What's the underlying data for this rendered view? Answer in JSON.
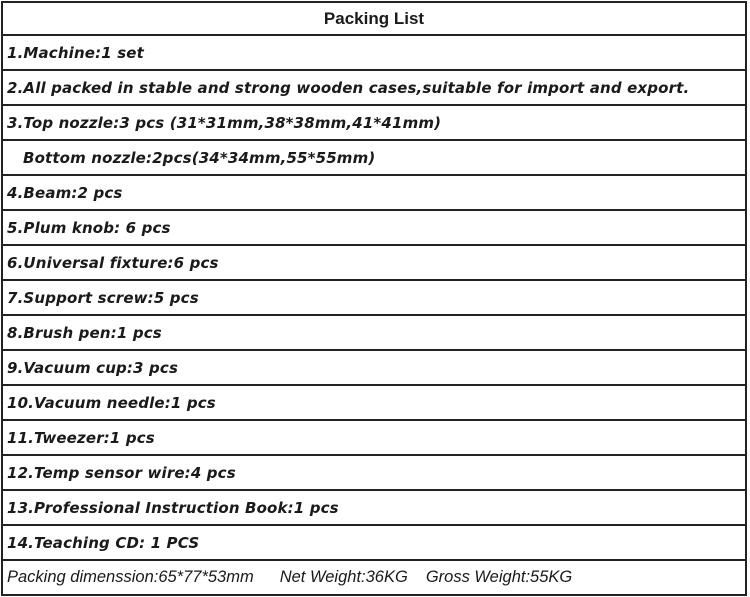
{
  "title": "Packing List",
  "items": [
    "1.Machine:1 set",
    "2.All packed in stable and strong wooden cases,suitable for import and export.",
    "3.Top nozzle:3 pcs (31*31mm,38*38mm,41*41mm)",
    "Bottom nozzle:2pcs(34*34mm,55*55mm)",
    "4.Beam:2 pcs",
    "5.Plum knob: 6 pcs",
    "6.Universal fixture:6 pcs",
    "7.Support screw:5 pcs",
    "8.Brush pen:1 pcs",
    "9.Vacuum cup:3 pcs",
    "10.Vacuum needle:1 pcs",
    "11.Tweezer:1 pcs",
    "12.Temp sensor wire:4 pcs",
    "13.Professional Instruction Book:1 pcs",
    "14.Teaching CD: 1 PCS"
  ],
  "footer": {
    "dimension": "Packing dimenssion:65*77*53mm",
    "net_weight": "Net Weight:36KG",
    "gross_weight": "Gross Weight:55KG"
  }
}
